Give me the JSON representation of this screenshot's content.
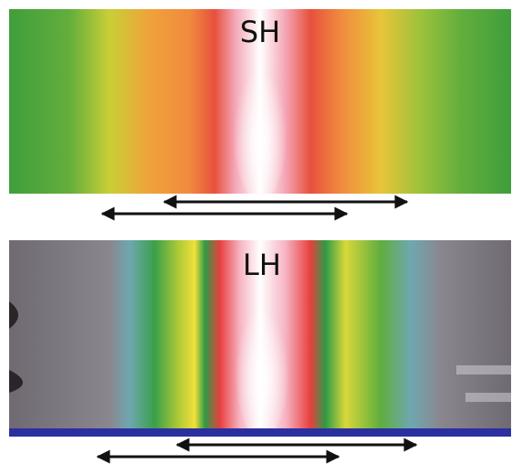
{
  "panels": [
    {
      "label": "SH"
    },
    {
      "label": "LH"
    }
  ]
}
